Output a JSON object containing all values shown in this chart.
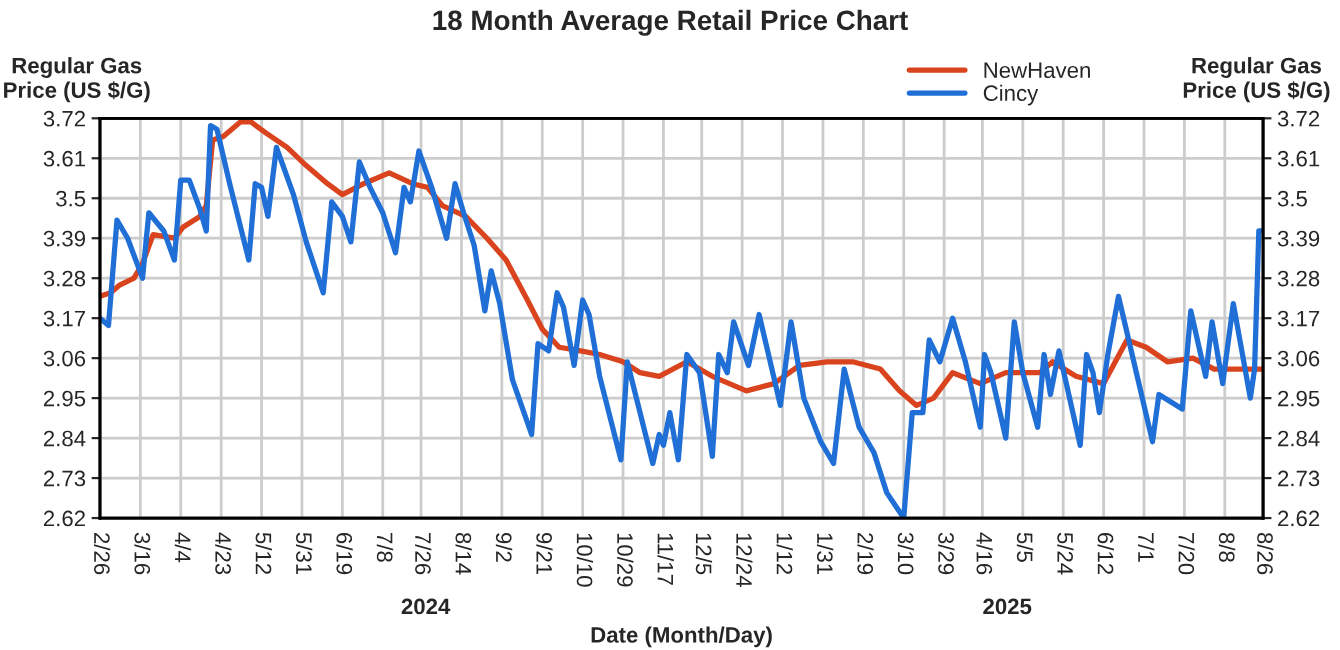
{
  "chart_data": {
    "type": "line",
    "title": "18 Month Average Retail Price Chart",
    "xlabel": "Date (Month/Day)",
    "ylabel": "Regular Gas\nPrice (US $/G)",
    "y2label": "Regular Gas\nPrice (US $/G)",
    "annotations": [
      "2024",
      "2025"
    ],
    "xlim": [
      "2024-02-26",
      "2025-08-26"
    ],
    "xticks": [
      {
        "value": "2024-02-26",
        "label": "2/26"
      },
      {
        "value": "2024-03-16",
        "label": "3/16"
      },
      {
        "value": "2024-04-04",
        "label": "4/4"
      },
      {
        "value": "2024-04-23",
        "label": "4/23"
      },
      {
        "value": "2024-05-12",
        "label": "5/12"
      },
      {
        "value": "2024-05-31",
        "label": "5/31"
      },
      {
        "value": "2024-06-19",
        "label": "6/19"
      },
      {
        "value": "2024-07-08",
        "label": "7/8"
      },
      {
        "value": "2024-07-26",
        "label": "7/26"
      },
      {
        "value": "2024-08-14",
        "label": "8/14"
      },
      {
        "value": "2024-09-02",
        "label": "9/2"
      },
      {
        "value": "2024-09-21",
        "label": "9/21"
      },
      {
        "value": "2024-10-10",
        "label": "10/10"
      },
      {
        "value": "2024-10-29",
        "label": "10/29"
      },
      {
        "value": "2024-11-17",
        "label": "11/17"
      },
      {
        "value": "2024-12-05",
        "label": "12/5"
      },
      {
        "value": "2024-12-24",
        "label": "12/24"
      },
      {
        "value": "2025-01-12",
        "label": "1/12"
      },
      {
        "value": "2025-01-31",
        "label": "1/31"
      },
      {
        "value": "2025-02-19",
        "label": "2/19"
      },
      {
        "value": "2025-03-10",
        "label": "3/10"
      },
      {
        "value": "2025-03-29",
        "label": "3/29"
      },
      {
        "value": "2025-04-16",
        "label": "4/16"
      },
      {
        "value": "2025-05-05",
        "label": "5/5"
      },
      {
        "value": "2025-05-24",
        "label": "5/24"
      },
      {
        "value": "2025-06-12",
        "label": "6/12"
      },
      {
        "value": "2025-07-01",
        "label": "7/1"
      },
      {
        "value": "2025-07-20",
        "label": "7/20"
      },
      {
        "value": "2025-08-08",
        "label": "8/8"
      },
      {
        "value": "2025-08-26",
        "label": "8/26"
      }
    ],
    "ylim": [
      2.62,
      3.72
    ],
    "yticks": [
      2.62,
      2.73,
      2.84,
      2.95,
      3.06,
      3.17,
      3.28,
      3.39,
      3.5,
      3.61,
      3.72
    ],
    "y2lim": [
      2.62,
      3.72
    ],
    "y2ticks": [
      2.62,
      2.73,
      2.84,
      2.95,
      3.06,
      3.17,
      3.28,
      3.39,
      3.5,
      3.61,
      3.72
    ],
    "grid": true,
    "legend": "top right",
    "marker": "none",
    "line_style": "solid",
    "series": [
      {
        "name": "NewHaven",
        "color": "#d9441e",
        "x": [
          "2024-02-26",
          "2024-03-02",
          "2024-03-06",
          "2024-03-13",
          "2024-03-17",
          "2024-03-22",
          "2024-04-01",
          "2024-04-05",
          "2024-04-13",
          "2024-04-16",
          "2024-04-19",
          "2024-04-24",
          "2024-05-02",
          "2024-05-07",
          "2024-05-14",
          "2024-05-24",
          "2024-06-02",
          "2024-06-12",
          "2024-06-19",
          "2024-06-29",
          "2024-07-11",
          "2024-07-22",
          "2024-07-29",
          "2024-08-05",
          "2024-08-16",
          "2024-08-26",
          "2024-09-04",
          "2024-09-14",
          "2024-09-21",
          "2024-09-29",
          "2024-10-09",
          "2024-10-18",
          "2024-10-29",
          "2024-11-06",
          "2024-11-15",
          "2024-11-28",
          "2024-12-10",
          "2024-12-26",
          "2025-01-08",
          "2025-01-20",
          "2025-02-02",
          "2025-02-14",
          "2025-02-27",
          "2025-03-08",
          "2025-03-16",
          "2025-03-24",
          "2025-04-02",
          "2025-04-15",
          "2025-04-27",
          "2025-05-13",
          "2025-05-19",
          "2025-05-30",
          "2025-06-12",
          "2025-06-23",
          "2025-07-02",
          "2025-07-12",
          "2025-07-24",
          "2025-08-03",
          "2025-08-15",
          "2025-08-26"
        ],
        "values": [
          3.23,
          3.24,
          3.26,
          3.28,
          3.32,
          3.4,
          3.39,
          3.42,
          3.45,
          3.48,
          3.66,
          3.67,
          3.71,
          3.71,
          3.68,
          3.64,
          3.59,
          3.54,
          3.51,
          3.54,
          3.57,
          3.54,
          3.53,
          3.48,
          3.45,
          3.39,
          3.33,
          3.22,
          3.14,
          3.09,
          3.08,
          3.07,
          3.05,
          3.02,
          3.01,
          3.05,
          3.01,
          2.97,
          2.99,
          3.04,
          3.05,
          3.05,
          3.03,
          2.97,
          2.93,
          2.95,
          3.02,
          2.99,
          3.02,
          3.02,
          3.05,
          3.01,
          2.99,
          3.11,
          3.09,
          3.05,
          3.06,
          3.03,
          3.03,
          3.03
        ]
      },
      {
        "name": "Cincy",
        "color": "#1f6fd6",
        "x": [
          "2024-02-26",
          "2024-03-01",
          "2024-03-05",
          "2024-03-10",
          "2024-03-17",
          "2024-03-20",
          "2024-03-27",
          "2024-04-01",
          "2024-04-04",
          "2024-04-08",
          "2024-04-13",
          "2024-04-16",
          "2024-04-18",
          "2024-04-21",
          "2024-04-27",
          "2024-05-06",
          "2024-05-09",
          "2024-05-12",
          "2024-05-15",
          "2024-05-19",
          "2024-05-27",
          "2024-06-02",
          "2024-06-10",
          "2024-06-14",
          "2024-06-19",
          "2024-06-23",
          "2024-06-27",
          "2024-07-02",
          "2024-07-08",
          "2024-07-14",
          "2024-07-18",
          "2024-07-21",
          "2024-07-25",
          "2024-07-31",
          "2024-08-07",
          "2024-08-11",
          "2024-08-15",
          "2024-08-20",
          "2024-08-25",
          "2024-08-28",
          "2024-09-01",
          "2024-09-07",
          "2024-09-16",
          "2024-09-19",
          "2024-09-24",
          "2024-09-28",
          "2024-10-01",
          "2024-10-06",
          "2024-10-10",
          "2024-10-13",
          "2024-10-18",
          "2024-10-28",
          "2024-10-31",
          "2024-11-12",
          "2024-11-15",
          "2024-11-17",
          "2024-11-20",
          "2024-11-24",
          "2024-11-28",
          "2024-12-04",
          "2024-12-10",
          "2024-12-13",
          "2024-12-17",
          "2024-12-20",
          "2024-12-27",
          "2025-01-01",
          "2025-01-11",
          "2025-01-16",
          "2025-01-22",
          "2025-01-30",
          "2025-02-05",
          "2025-02-10",
          "2025-02-17",
          "2025-02-24",
          "2025-03-02",
          "2025-03-10",
          "2025-03-14",
          "2025-03-19",
          "2025-03-22",
          "2025-03-27",
          "2025-04-02",
          "2025-04-08",
          "2025-04-15",
          "2025-04-17",
          "2025-04-20",
          "2025-04-27",
          "2025-05-01",
          "2025-05-05",
          "2025-05-12",
          "2025-05-15",
          "2025-05-18",
          "2025-05-22",
          "2025-06-01",
          "2025-06-04",
          "2025-06-07",
          "2025-06-10",
          "2025-06-14",
          "2025-06-19",
          "2025-06-23",
          "2025-07-05",
          "2025-07-08",
          "2025-07-19",
          "2025-07-23",
          "2025-07-30",
          "2025-08-02",
          "2025-08-07",
          "2025-08-12",
          "2025-08-20",
          "2025-08-22",
          "2025-08-24",
          "2025-08-26"
        ],
        "values": [
          3.17,
          3.15,
          3.44,
          3.39,
          3.28,
          3.46,
          3.41,
          3.33,
          3.55,
          3.55,
          3.47,
          3.41,
          3.7,
          3.69,
          3.54,
          3.33,
          3.54,
          3.53,
          3.45,
          3.64,
          3.51,
          3.38,
          3.24,
          3.49,
          3.45,
          3.38,
          3.6,
          3.53,
          3.46,
          3.35,
          3.53,
          3.49,
          3.63,
          3.53,
          3.39,
          3.54,
          3.46,
          3.37,
          3.19,
          3.3,
          3.21,
          3.0,
          2.85,
          3.1,
          3.08,
          3.24,
          3.2,
          3.04,
          3.22,
          3.18,
          3.01,
          2.78,
          3.05,
          2.77,
          2.85,
          2.82,
          2.91,
          2.78,
          3.07,
          3.02,
          2.79,
          3.07,
          3.02,
          3.16,
          3.04,
          3.18,
          2.93,
          3.16,
          2.95,
          2.83,
          2.77,
          3.03,
          2.87,
          2.8,
          2.69,
          2.62,
          2.91,
          2.91,
          3.11,
          3.05,
          3.17,
          3.05,
          2.87,
          3.07,
          3.02,
          2.84,
          3.16,
          3.02,
          2.87,
          3.07,
          2.96,
          3.08,
          2.82,
          3.07,
          3.02,
          2.91,
          3.07,
          3.23,
          3.13,
          2.83,
          2.96,
          2.92,
          3.19,
          3.01,
          3.16,
          2.99,
          3.21,
          2.95,
          3.03,
          3.41,
          3.41
        ]
      }
    ]
  }
}
